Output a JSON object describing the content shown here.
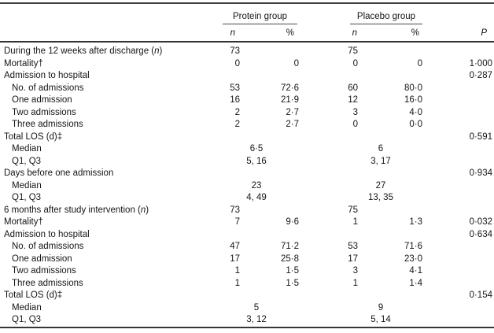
{
  "table": {
    "groups": [
      {
        "label": "Protein group"
      },
      {
        "label": "Placebo group"
      }
    ],
    "subheaders": {
      "n1": "n",
      "pct1": "%",
      "n2": "n",
      "pct2": "%",
      "p": "P"
    },
    "rows": [
      {
        "label": "During the 12 weeks after discharge (n)",
        "indent": false,
        "type": "normal",
        "n1": "73",
        "pct1": "",
        "n2": "75",
        "pct2": "",
        "p": ""
      },
      {
        "label": "Mortality†",
        "indent": false,
        "type": "normal",
        "n1": "0",
        "pct1": "0",
        "n2": "0",
        "pct2": "0",
        "p": "1·000"
      },
      {
        "label": "Admission to hospital",
        "indent": false,
        "type": "normal",
        "n1": "",
        "pct1": "",
        "n2": "",
        "pct2": "",
        "p": "0·287"
      },
      {
        "label": "No. of admissions",
        "indent": true,
        "type": "normal",
        "n1": "53",
        "pct1": "72·6",
        "n2": "60",
        "pct2": "80·0",
        "p": ""
      },
      {
        "label": "One admission",
        "indent": true,
        "type": "normal",
        "n1": "16",
        "pct1": "21·9",
        "n2": "12",
        "pct2": "16·0",
        "p": ""
      },
      {
        "label": "Two admissions",
        "indent": true,
        "type": "normal",
        "n1": "2",
        "pct1": "2·7",
        "n2": "3",
        "pct2": "4·0",
        "p": ""
      },
      {
        "label": "Three admissions",
        "indent": true,
        "type": "normal",
        "n1": "2",
        "pct1": "2·7",
        "n2": "0",
        "pct2": "0·0",
        "p": ""
      },
      {
        "label": "Total LOS (d)‡",
        "indent": false,
        "type": "normal",
        "n1": "",
        "pct1": "",
        "n2": "",
        "pct2": "",
        "p": "0·591"
      },
      {
        "label": "Median",
        "indent": true,
        "type": "span",
        "span1": "6·5",
        "span2": "6",
        "p": ""
      },
      {
        "label": "Q1, Q3",
        "indent": true,
        "type": "span",
        "span1": "5, 16",
        "span2": "3, 17",
        "p": ""
      },
      {
        "label": "Days before one admission",
        "indent": false,
        "type": "normal",
        "n1": "",
        "pct1": "",
        "n2": "",
        "pct2": "",
        "p": "0·934"
      },
      {
        "label": "Median",
        "indent": true,
        "type": "span",
        "span1": "23",
        "span2": "27",
        "p": ""
      },
      {
        "label": "Q1, Q3",
        "indent": true,
        "type": "span",
        "span1": "4, 49",
        "span2": "13, 35",
        "p": ""
      },
      {
        "label": "6 months after study intervention (n)",
        "indent": false,
        "type": "normal",
        "n1": "73",
        "pct1": "",
        "n2": "75",
        "pct2": "",
        "p": ""
      },
      {
        "label": "Mortality†",
        "indent": false,
        "type": "normal",
        "n1": "7",
        "pct1": "9·6",
        "n2": "1",
        "pct2": "1·3",
        "p": "0·032"
      },
      {
        "label": "Admission to hospital",
        "indent": false,
        "type": "normal",
        "n1": "",
        "pct1": "",
        "n2": "",
        "pct2": "",
        "p": "0·634"
      },
      {
        "label": "No. of admissions",
        "indent": true,
        "type": "normal",
        "n1": "47",
        "pct1": "71·2",
        "n2": "53",
        "pct2": "71·6",
        "p": ""
      },
      {
        "label": "One admission",
        "indent": true,
        "type": "normal",
        "n1": "17",
        "pct1": "25·8",
        "n2": "17",
        "pct2": "23·0",
        "p": ""
      },
      {
        "label": "Two admissions",
        "indent": true,
        "type": "normal",
        "n1": "1",
        "pct1": "1·5",
        "n2": "3",
        "pct2": "4·1",
        "p": ""
      },
      {
        "label": "Three admissions",
        "indent": true,
        "type": "normal",
        "n1": "1",
        "pct1": "1·5",
        "n2": "1",
        "pct2": "1·4",
        "p": ""
      },
      {
        "label": "Total LOS (d)‡",
        "indent": false,
        "type": "normal",
        "n1": "",
        "pct1": "",
        "n2": "",
        "pct2": "",
        "p": "0·154"
      },
      {
        "label": "Median",
        "indent": true,
        "type": "span",
        "span1": "5",
        "span2": "9",
        "p": ""
      },
      {
        "label": "Q1, Q3",
        "indent": true,
        "type": "span",
        "span1": "3, 12",
        "span2": "5, 14",
        "p": ""
      }
    ]
  }
}
